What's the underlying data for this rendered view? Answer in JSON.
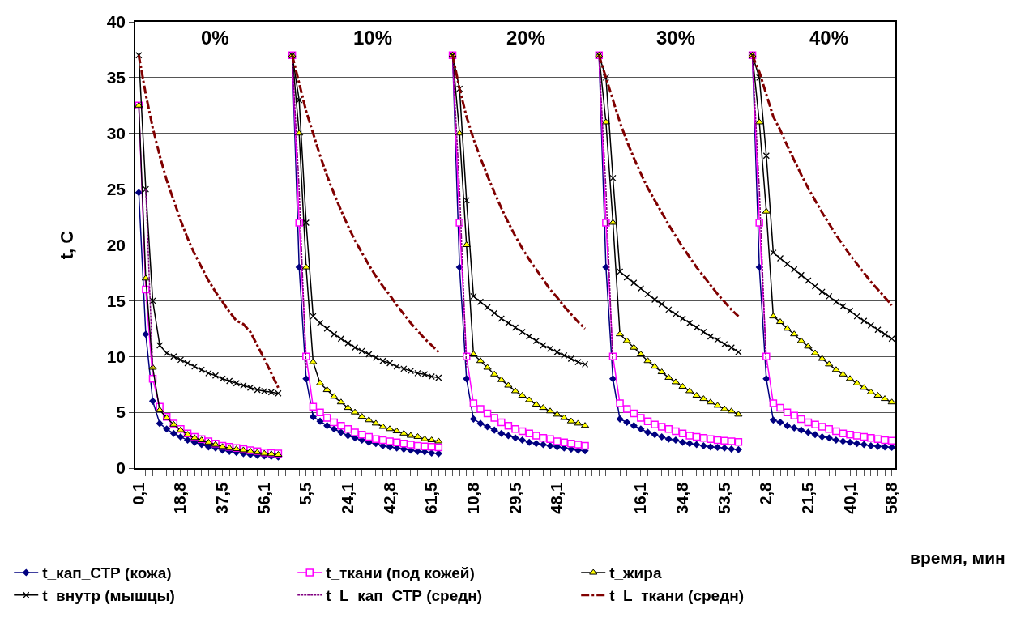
{
  "chart_data": {
    "type": "line",
    "xlabel": "время, мин",
    "ylabel": "t, C",
    "annotations": [
      "0%",
      "10%",
      "20%",
      "30%",
      "40%"
    ],
    "categories": [
      "0,1",
      null,
      null,
      null,
      null,
      null,
      "18,8",
      null,
      null,
      null,
      null,
      null,
      "37,5",
      null,
      null,
      null,
      null,
      null,
      "56,1",
      null,
      null,
      null,
      null,
      null,
      "5,5",
      null,
      null,
      null,
      null,
      null,
      "24,1",
      null,
      null,
      null,
      null,
      null,
      "42,8",
      null,
      null,
      null,
      null,
      null,
      "61,5",
      null,
      null,
      null,
      null,
      null,
      "10,8",
      null,
      null,
      null,
      null,
      null,
      "29,5",
      null,
      null,
      null,
      null,
      null,
      "48,1",
      null,
      null,
      null,
      null,
      null,
      null,
      null,
      null,
      null,
      null,
      null,
      "16,1",
      null,
      null,
      null,
      null,
      null,
      "34,8",
      null,
      null,
      null,
      null,
      null,
      "53,5",
      null,
      null,
      null,
      null,
      null,
      "2,8",
      null,
      null,
      null,
      null,
      null,
      "21,5",
      null,
      null,
      null,
      null,
      null,
      "40,1",
      null,
      null,
      null,
      null,
      null,
      "58,8"
    ],
    "ylim": [
      0,
      40
    ],
    "yticks": [
      0,
      5,
      10,
      15,
      20,
      25,
      30,
      35,
      40
    ],
    "grid": "y",
    "legend": "bottom",
    "series": [
      {
        "name": "t_кап_СТР (кожа)",
        "color": "#000080",
        "marker": "diamond",
        "line_style": "solid",
        "values": [
          24.7,
          12,
          6,
          4.0,
          3.5,
          3.1,
          2.8,
          2.5,
          2.3,
          2.1,
          1.9,
          1.8,
          1.6,
          1.5,
          1.4,
          1.3,
          1.2,
          1.15,
          1.1,
          1.05,
          1.0,
          null,
          37,
          18,
          8,
          4.6,
          4.2,
          3.8,
          3.5,
          3.2,
          2.9,
          2.7,
          2.5,
          2.3,
          2.2,
          2.0,
          1.9,
          1.8,
          1.7,
          1.6,
          1.5,
          1.45,
          1.35,
          1.3,
          null,
          37,
          18,
          8,
          4.4,
          4.0,
          3.7,
          3.4,
          3.1,
          2.9,
          2.7,
          2.5,
          2.3,
          2.2,
          2.1,
          2.0,
          1.9,
          1.8,
          1.7,
          1.6,
          1.55,
          null,
          37,
          18,
          8,
          4.4,
          4.1,
          3.8,
          3.5,
          3.2,
          3.0,
          2.8,
          2.6,
          2.5,
          2.3,
          2.2,
          2.1,
          2.0,
          1.9,
          1.85,
          1.8,
          1.7,
          1.65,
          null,
          37,
          18,
          8,
          4.3,
          4.1,
          3.8,
          3.6,
          3.4,
          3.2,
          3.0,
          2.8,
          2.7,
          2.5,
          2.4,
          2.3,
          2.2,
          2.1,
          2.0,
          1.95,
          1.9,
          1.85
        ]
      },
      {
        "name": "t_ткани (под кожей)",
        "color": "#ff00ff",
        "marker": "square",
        "line_style": "solid",
        "values": [
          32.5,
          16,
          8,
          5.5,
          4.6,
          4.0,
          3.5,
          3.1,
          2.8,
          2.6,
          2.4,
          2.2,
          2.0,
          1.9,
          1.8,
          1.7,
          1.6,
          1.5,
          1.4,
          1.35,
          1.3,
          null,
          37,
          22,
          10,
          5.5,
          5.0,
          4.5,
          4.1,
          3.8,
          3.5,
          3.2,
          3.0,
          2.8,
          2.6,
          2.5,
          2.4,
          2.3,
          2.2,
          2.1,
          2.0,
          1.95,
          1.9,
          1.85,
          null,
          37,
          22,
          10,
          5.8,
          5.3,
          4.9,
          4.5,
          4.1,
          3.8,
          3.5,
          3.3,
          3.1,
          2.9,
          2.7,
          2.6,
          2.4,
          2.3,
          2.2,
          2.1,
          2.0,
          null,
          37,
          22,
          10,
          5.8,
          5.3,
          4.9,
          4.5,
          4.2,
          3.9,
          3.7,
          3.5,
          3.3,
          3.1,
          2.9,
          2.8,
          2.7,
          2.6,
          2.5,
          2.45,
          2.4,
          2.35,
          null,
          37,
          22,
          10,
          5.8,
          5.4,
          5.0,
          4.7,
          4.4,
          4.1,
          3.9,
          3.7,
          3.5,
          3.3,
          3.1,
          3.0,
          2.9,
          2.8,
          2.7,
          2.6,
          2.5,
          2.45
        ]
      },
      {
        "name": "t_жира",
        "color": "#ffff00",
        "marker": "triangle",
        "line_style": "solid",
        "values": [
          32.5,
          17,
          9,
          5.2,
          4.5,
          3.9,
          3.4,
          3.0,
          2.7,
          2.5,
          2.3,
          2.1,
          1.9,
          1.8,
          1.7,
          1.6,
          1.5,
          1.4,
          1.3,
          1.25,
          1.2,
          null,
          37,
          30,
          18,
          9.5,
          7.6,
          7.0,
          6.4,
          5.9,
          5.4,
          5.0,
          4.6,
          4.3,
          4.0,
          3.7,
          3.5,
          3.3,
          3.1,
          2.9,
          2.8,
          2.6,
          2.5,
          2.4,
          null,
          37,
          30,
          20,
          10.2,
          9.6,
          9.0,
          8.4,
          7.9,
          7.4,
          6.9,
          6.5,
          6.1,
          5.7,
          5.4,
          5.1,
          4.8,
          4.5,
          4.2,
          4.0,
          3.8,
          null,
          37,
          31,
          22,
          12.0,
          11.4,
          10.8,
          10.2,
          9.6,
          9.1,
          8.6,
          8.1,
          7.7,
          7.3,
          6.9,
          6.5,
          6.2,
          5.9,
          5.6,
          5.3,
          5.1,
          4.8,
          null,
          37,
          31,
          23,
          13.6,
          13.1,
          12.5,
          12.0,
          11.4,
          10.9,
          10.3,
          9.8,
          9.3,
          8.8,
          8.4,
          8.0,
          7.6,
          7.2,
          6.8,
          6.5,
          6.2,
          5.9
        ]
      },
      {
        "name": "t_внутр (мышцы)",
        "color": "#000000",
        "marker": "cross",
        "line_style": "solid",
        "values": [
          37,
          25,
          15,
          11,
          10.3,
          10,
          9.7,
          9.4,
          9.1,
          8.8,
          8.5,
          8.3,
          8.0,
          7.8,
          7.6,
          7.4,
          7.2,
          7.0,
          6.9,
          6.8,
          6.7,
          null,
          37,
          33,
          22,
          13.6,
          13.0,
          12.5,
          12.0,
          11.6,
          11.2,
          10.8,
          10.5,
          10.2,
          9.9,
          9.6,
          9.4,
          9.1,
          8.9,
          8.7,
          8.5,
          8.4,
          8.2,
          8.1,
          null,
          37,
          34,
          24,
          15.4,
          14.9,
          14.4,
          13.9,
          13.4,
          13.0,
          12.6,
          12.2,
          11.8,
          11.4,
          11.0,
          10.7,
          10.4,
          10.1,
          9.8,
          9.5,
          9.3,
          null,
          37,
          35,
          26,
          17.6,
          17.1,
          16.6,
          16.1,
          15.6,
          15.1,
          14.7,
          14.2,
          13.8,
          13.4,
          13.0,
          12.6,
          12.2,
          11.8,
          11.5,
          11.1,
          10.8,
          10.4,
          null,
          37,
          35,
          28,
          19.3,
          18.8,
          18.3,
          17.8,
          17.3,
          16.8,
          16.3,
          15.8,
          15.4,
          14.9,
          14.5,
          14.1,
          13.6,
          13.2,
          12.8,
          12.4,
          12.0,
          11.6
        ]
      },
      {
        "name": "t_L_кап_СТР (средн)",
        "color": "#800080",
        "marker": "none",
        "line_style": "dashed",
        "values": [
          null,
          25,
          9,
          null,
          null,
          null,
          null,
          null,
          null,
          null,
          null,
          null,
          null,
          null,
          null,
          null,
          null,
          null,
          null,
          null,
          null,
          null,
          37,
          25,
          9,
          null,
          null,
          null,
          null,
          null,
          null,
          null,
          null,
          null,
          null,
          null,
          null,
          null,
          null,
          null,
          null,
          null,
          null,
          null,
          null,
          37,
          25,
          9,
          null,
          null,
          null,
          null,
          null,
          null,
          null,
          null,
          null,
          null,
          null,
          null,
          null,
          null,
          null,
          null,
          null,
          null,
          37,
          25,
          9,
          null,
          null,
          null,
          null,
          null,
          null,
          null,
          null,
          null,
          null,
          null,
          null,
          null,
          null,
          null,
          null,
          null,
          null,
          null,
          37,
          25,
          9,
          null,
          null,
          null,
          null,
          null,
          null,
          null,
          null,
          null,
          null,
          null,
          null,
          null,
          null,
          null,
          null,
          null,
          null
        ]
      },
      {
        "name": "t_L_ткани (средн)",
        "color": "#800000",
        "marker": "none",
        "line_style": "dashed",
        "values": [
          37,
          33.5,
          30.5,
          28,
          25.8,
          24,
          22.2,
          20.6,
          19.2,
          18,
          16.8,
          15.8,
          14.9,
          14.0,
          13.2,
          12.9,
          12.2,
          11.0,
          9.8,
          8.5,
          7.2,
          null,
          37,
          34.5,
          32,
          30,
          28,
          26.2,
          24.6,
          23.1,
          21.7,
          20.4,
          19.3,
          18.2,
          17.2,
          16.3,
          15.5,
          14.6,
          13.8,
          13.0,
          12.3,
          11.6,
          11.0,
          10.4,
          null,
          37,
          34,
          31.5,
          29.5,
          27.8,
          26.2,
          24.7,
          23.3,
          22.0,
          20.8,
          19.7,
          18.7,
          17.8,
          16.9,
          16.0,
          15.3,
          14.5,
          13.8,
          13.1,
          12.5,
          null,
          37,
          35,
          33,
          31,
          29.3,
          27.8,
          26.4,
          25.1,
          24.0,
          22.9,
          21.8,
          20.8,
          19.8,
          18.9,
          18.0,
          17.2,
          16.4,
          15.6,
          14.9,
          14.2,
          13.6,
          null,
          37,
          35.5,
          33.5,
          31.5,
          30.3,
          28.9,
          27.6,
          26.3,
          25.1,
          24.0,
          22.9,
          21.9,
          20.9,
          20.0,
          19.1,
          18.3,
          17.5,
          16.7,
          16.0,
          15.3,
          14.6
        ]
      }
    ]
  }
}
